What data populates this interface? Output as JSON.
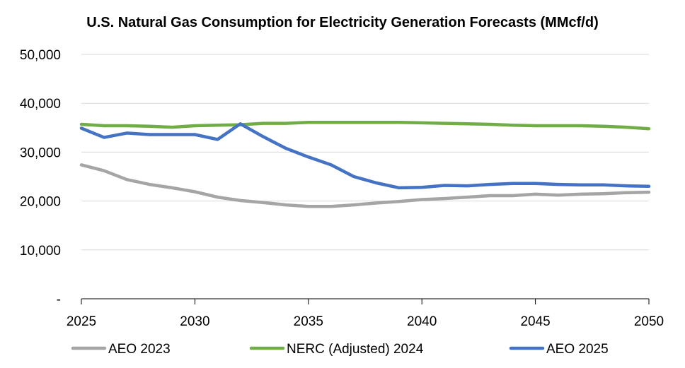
{
  "chart_data": {
    "type": "line",
    "title": "U.S. Natural Gas Consumption for Electricity Generation Forecasts (MMcf/d)",
    "xlabel": "",
    "ylabel": "",
    "xlim": [
      2025,
      2050
    ],
    "ylim": [
      0,
      50000
    ],
    "x_ticks": [
      "2025",
      "2030",
      "2035",
      "2040",
      "2045",
      "2050"
    ],
    "y_ticks": [
      "-",
      "10,000",
      "20,000",
      "30,000",
      "40,000",
      "50,000"
    ],
    "grid": true,
    "legend_position": "bottom",
    "x": [
      2025,
      2026,
      2027,
      2028,
      2029,
      2030,
      2031,
      2032,
      2033,
      2034,
      2035,
      2036,
      2037,
      2038,
      2039,
      2040,
      2041,
      2042,
      2043,
      2044,
      2045,
      2046,
      2047,
      2048,
      2049,
      2050
    ],
    "series": [
      {
        "name": "AEO 2023",
        "color": "#a5a5a5",
        "values": [
          27400,
          26200,
          24400,
          23400,
          22700,
          21900,
          20800,
          20100,
          19700,
          19200,
          18900,
          18900,
          19200,
          19600,
          19900,
          20300,
          20500,
          20800,
          21100,
          21100,
          21400,
          21200,
          21400,
          21500,
          21700,
          21800
        ]
      },
      {
        "name": "NERC (Adjusted) 2024",
        "color": "#70ad47",
        "values": [
          35700,
          35400,
          35400,
          35300,
          35100,
          35400,
          35500,
          35600,
          35900,
          35900,
          36100,
          36100,
          36100,
          36100,
          36100,
          36000,
          35900,
          35800,
          35700,
          35500,
          35400,
          35400,
          35400,
          35300,
          35100,
          34800
        ]
      },
      {
        "name": "AEO 2025",
        "color": "#4472c4",
        "values": [
          34900,
          33000,
          33900,
          33600,
          33600,
          33600,
          32600,
          35800,
          33200,
          30800,
          29000,
          27400,
          25000,
          23700,
          22700,
          22800,
          23200,
          23100,
          23400,
          23600,
          23600,
          23400,
          23300,
          23300,
          23100,
          23000
        ]
      }
    ]
  }
}
